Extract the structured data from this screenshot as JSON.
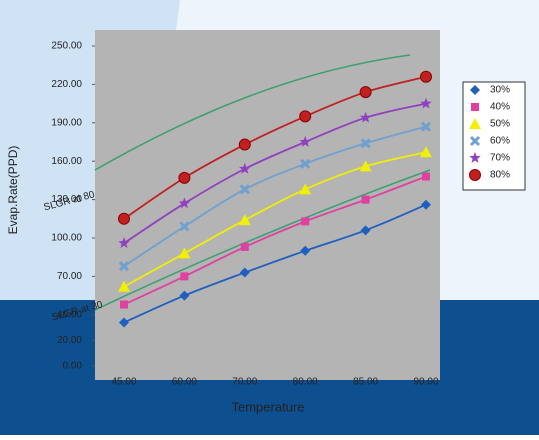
{
  "chart_data": {
    "type": "line",
    "y_label": "Evap.Rate(PPD)",
    "x_label": "Temperature",
    "categories": [
      "45.00",
      "60.00",
      "70.00",
      "80.00",
      "85.00",
      "90.00"
    ],
    "ylim": [
      0,
      250
    ],
    "yticks": [
      {
        "value": 0,
        "label": "0.00"
      },
      {
        "value": 20,
        "label": "20.00"
      },
      {
        "value": 40,
        "label": "40.00"
      },
      {
        "value": 70,
        "label": "70.00"
      },
      {
        "value": 100,
        "label": "100.00"
      },
      {
        "value": 130,
        "label": "130.00"
      },
      {
        "value": 160,
        "label": "160.00"
      },
      {
        "value": 190,
        "label": "190.00"
      },
      {
        "value": 220,
        "label": "220.00"
      },
      {
        "value": 250,
        "label": "250.00"
      }
    ],
    "annotations": [
      "SLGR at 80",
      "SLGR at 30"
    ],
    "series": [
      {
        "name": "30%",
        "color": "#1f5fbf",
        "marker": "diamond",
        "values": [
          34,
          55,
          73,
          90,
          106,
          126
        ]
      },
      {
        "name": "40%",
        "color": "#e040a0",
        "marker": "square",
        "values": [
          48,
          70,
          93,
          113,
          130,
          148
        ]
      },
      {
        "name": "50%",
        "color": "#f0f000",
        "marker": "triangle",
        "values": [
          62,
          88,
          114,
          138,
          156,
          167
        ]
      },
      {
        "name": "60%",
        "color": "#6fa0d0",
        "marker": "x",
        "values": [
          78,
          109,
          138,
          158,
          174,
          187
        ]
      },
      {
        "name": "70%",
        "color": "#9040c0",
        "marker": "star",
        "values": [
          96,
          127,
          154,
          175,
          194,
          205
        ]
      },
      {
        "name": "80%",
        "color": "#c02020",
        "marker": "circle",
        "values": [
          115,
          147,
          173,
          195,
          214,
          226
        ]
      }
    ]
  }
}
